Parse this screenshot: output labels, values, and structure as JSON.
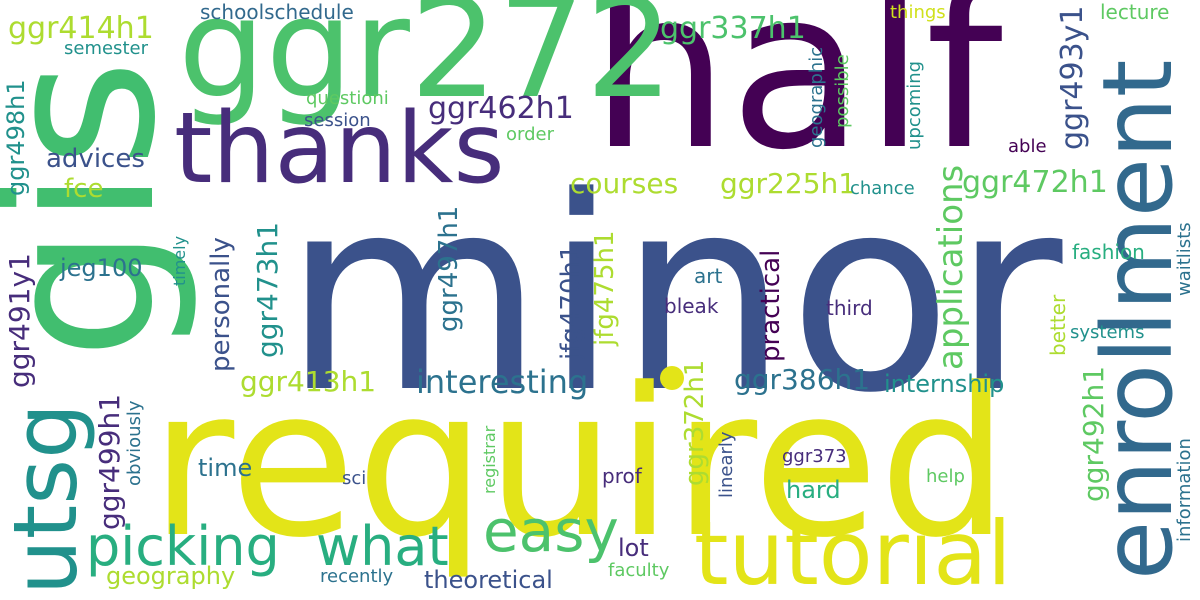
{
  "palette": {
    "purple": "#440154",
    "indigo": "#472d7b",
    "blue": "#3b528b",
    "steel": "#2c728e",
    "teal": "#21918c",
    "green": "#28ae80",
    "lightgreen": "#5ec962",
    "lime": "#addc30",
    "yellow": "#e3e418"
  },
  "words": {
    "minor": "minor",
    "required": "required",
    "half": "half",
    "gis": "gis",
    "ggr272": "ggr272",
    "enrollment": "enrollment",
    "thanks": "thanks",
    "tutorial": "tutorial",
    "utsg": "utsg",
    "picking": "picking",
    "what": "what",
    "easy": "easy",
    "interesting": "interesting",
    "applications": "applications",
    "ggr414h1": "ggr414h1",
    "ggr462h1": "ggr462h1",
    "ggr337h1": "ggr337h1",
    "ggr493y1": "ggr493y1",
    "ggr472h1": "ggr472h1",
    "courses": "courses",
    "ggr225h1": "ggr225h1",
    "ggr413h1": "ggr413h1",
    "ggr386h1": "ggr386h1",
    "internship": "internship",
    "ggr492h1": "ggr492h1",
    "ggr498h1": "ggr498h1",
    "ggr491y1": "ggr491y1",
    "ggr499h1": "ggr499h1",
    "ggr473h1": "ggr473h1",
    "ggr497h1": "ggr497h1",
    "jfg470h1": "jfg470h1",
    "jfg475h1": "jfg475h1",
    "ggr372h1": "ggr372h1",
    "practical": "practical",
    "personally": "personally",
    "jeg100": "jeg100",
    "advices": "advices",
    "fce": "fce",
    "geography": "geography",
    "theoretical": "theoretical",
    "lot": "lot",
    "hard": "hard",
    "time": "time",
    "schoolschedule": "schoolschedule",
    "semester": "semester",
    "questioni": "questioni",
    "session": "session",
    "order": "order",
    "things": "things",
    "lecture": "lecture",
    "geographic": "geographic",
    "possible": "possible",
    "upcoming": "upcoming",
    "able": "able",
    "chance": "chance",
    "fashion": "fashion",
    "waitlists": "waitlists",
    "systems": "systems",
    "better": "better",
    "third": "third",
    "art": "art",
    "bleak": "bleak",
    "timely": "timely",
    "obviously": "obviously",
    "registrar": "registrar",
    "linearly": "linearly",
    "ggr373": "ggr373",
    "prof": "prof",
    "sci": "sci",
    "help": "help",
    "information": "information",
    "recently": "recently",
    "faculty": "faculty"
  }
}
